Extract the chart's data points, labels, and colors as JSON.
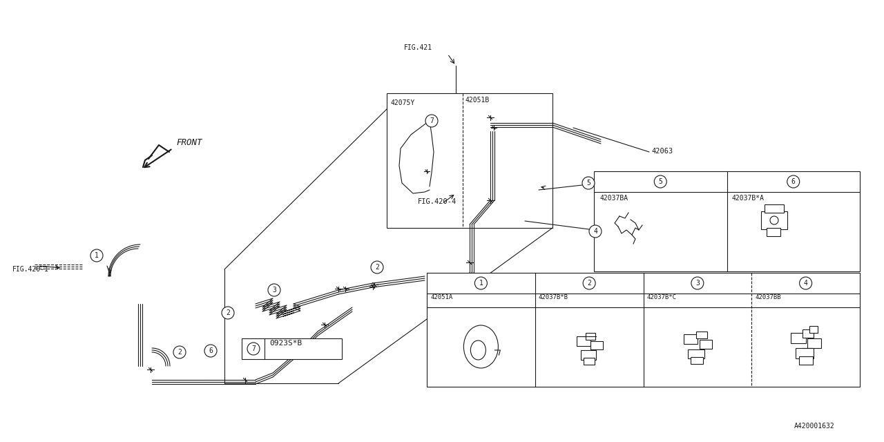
{
  "bg_color": "#ffffff",
  "line_color": "#1a1a1a",
  "fig_width": 12.8,
  "fig_height": 6.4,
  "ref_code": "A420001632",
  "labels": {
    "fig421": "FIG.421",
    "fig420_1": "FIG.420-1",
    "fig420_4": "FIG.420-4",
    "part_42075Y": "42075Y",
    "part_42051B": "42051B",
    "part_42063": "42063",
    "part_7_label": "0923S*B",
    "legend_5": "42037BA",
    "legend_6": "42037B*A",
    "legend_1": "42051A",
    "legend_2": "42037B*B",
    "legend_3": "42037B*C",
    "legend_4": "42037BB"
  }
}
